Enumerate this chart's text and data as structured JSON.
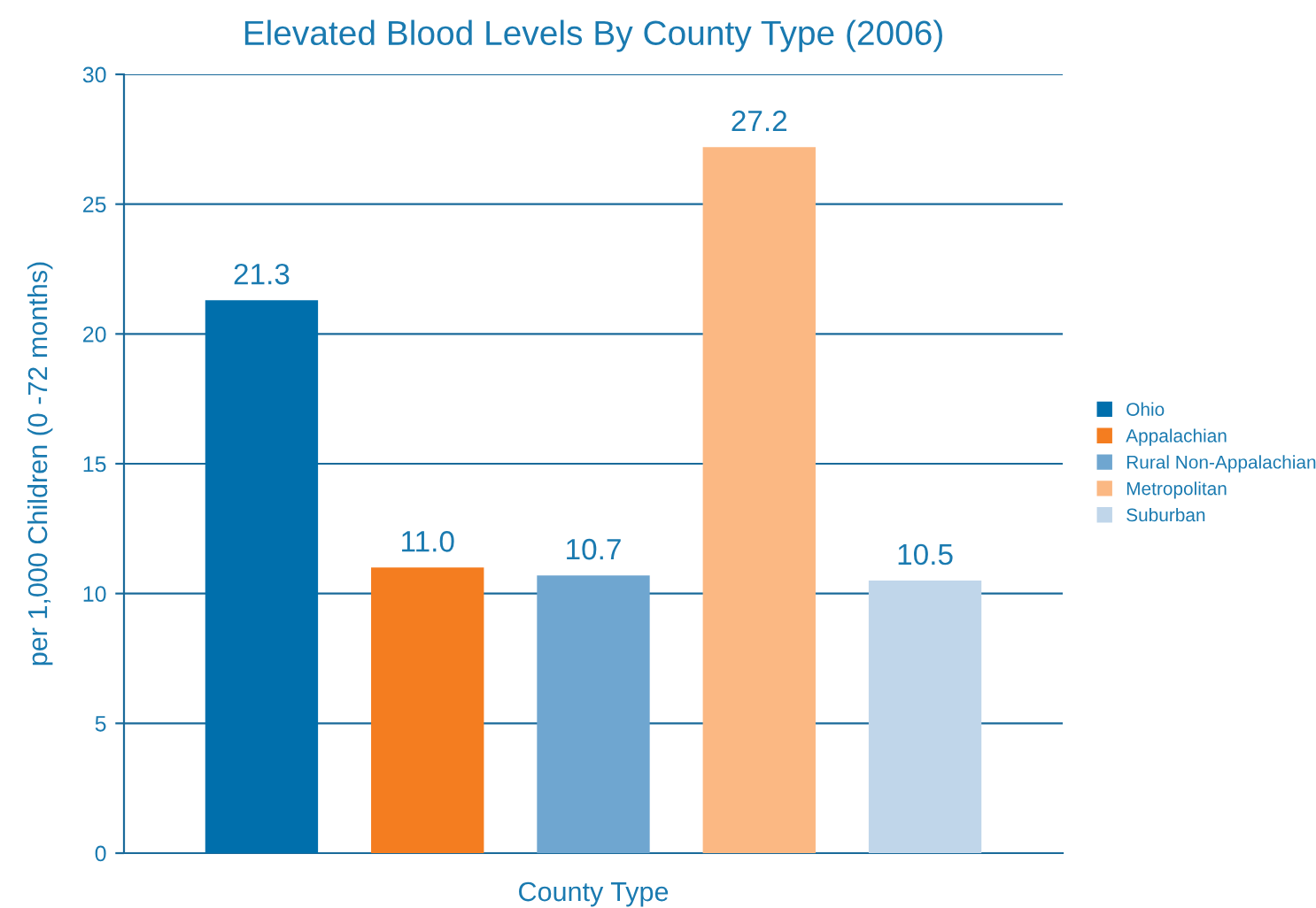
{
  "chart_data": {
    "type": "bar",
    "title": "Elevated Blood Levels By County Type (2006)",
    "xlabel": "County Type",
    "ylabel": "per 1,000 Children (0 -72 months)",
    "categories": [
      null
    ],
    "series": [
      {
        "name": "Ohio",
        "color": "#006fac",
        "values": [
          21.3
        ]
      },
      {
        "name": "Appalachian",
        "color": "#f47d20",
        "values": [
          11.0
        ]
      },
      {
        "name": "Rural Non-Appalachian",
        "color": "#6fa6d0",
        "values": [
          10.7
        ]
      },
      {
        "name": "Metropolitan",
        "color": "#fbb883",
        "values": [
          27.2
        ]
      },
      {
        "name": "Suburban",
        "color": "#c0d6ea",
        "values": [
          10.5
        ]
      }
    ],
    "value_labels": [
      [
        "21.3"
      ],
      [
        "11.0"
      ],
      [
        "10.7"
      ],
      [
        "27.2"
      ],
      [
        "10.5"
      ]
    ],
    "ylim": [
      0,
      30
    ],
    "yticks": [
      0,
      5,
      10,
      15,
      20,
      25,
      30
    ],
    "grid": "y",
    "legend": "right"
  }
}
